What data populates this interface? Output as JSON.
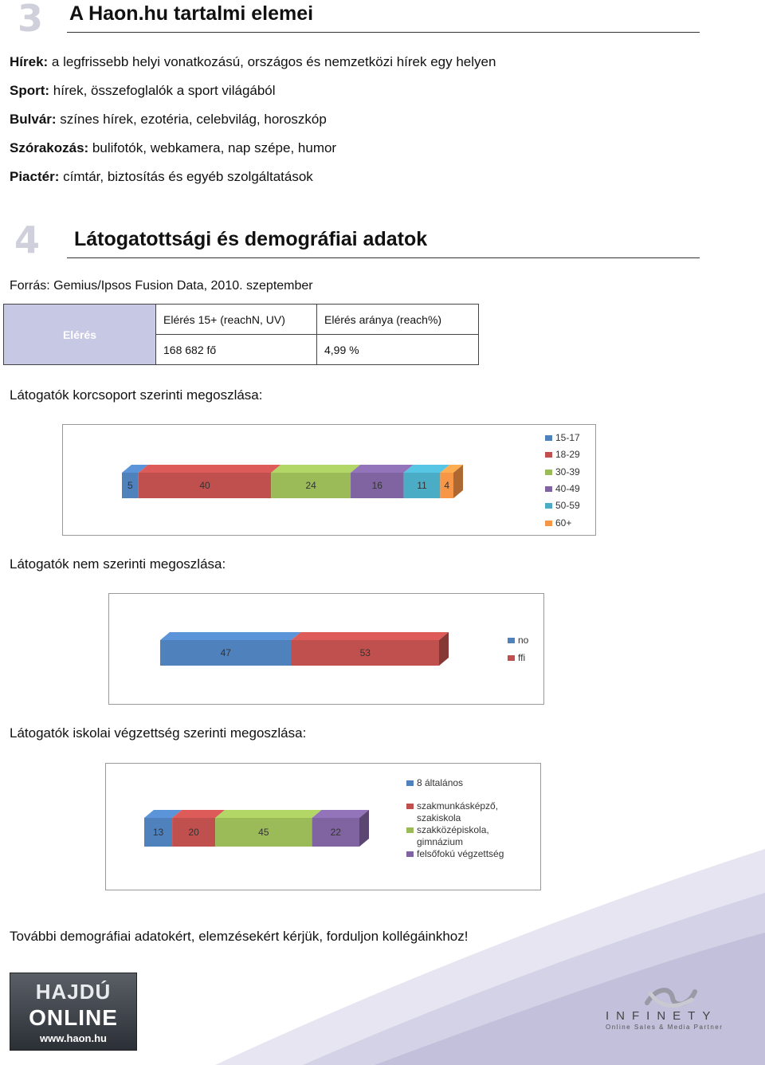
{
  "section3": {
    "number": "3",
    "title": "A Haon.hu tartalmi elemei"
  },
  "content_items": [
    {
      "label": "Hírek:",
      "text": " a legfrissebb helyi vonatkozású, országos és nemzetközi hírek egy helyen"
    },
    {
      "label": "Sport:",
      "text": " hírek, összefoglalók a sport világából"
    },
    {
      "label": "Bulvár:",
      "text": " színes hírek, ezotéria, celebvilág, horoszkóp"
    },
    {
      "label": "Szórakozás:",
      "text": " bulifotók, webkamera, nap szépe, humor"
    },
    {
      "label": "Piactér:",
      "text": " címtár, biztosítás és egyéb szolgáltatások"
    }
  ],
  "section4": {
    "number": "4",
    "title": "Látogatottsági és demográfiai adatok"
  },
  "source": "Forrás: Gemius/Ipsos Fusion Data, 2010. szeptember",
  "reach_table": {
    "row_header": "Elérés",
    "col1_header": "Elérés 15+ (reachN, UV)",
    "col2_header": "Elérés aránya (reach%)",
    "col1_value": "168 682 fő",
    "col2_value": "4,99 %"
  },
  "headings": {
    "age": "Látogatók korcsoport szerinti megoszlása:",
    "gender": "Látogatók nem szerinti megoszlása:",
    "education": "Látogatók iskolai végzettség szerinti megoszlása:"
  },
  "chart_data": [
    {
      "type": "bar",
      "stacked": true,
      "orientation": "horizontal",
      "series": [
        {
          "name": "15-17",
          "value": 5,
          "color": "#4f81bd"
        },
        {
          "name": "18-29",
          "value": 40,
          "color": "#c0504d"
        },
        {
          "name": "30-39",
          "value": 24,
          "color": "#9bbb59"
        },
        {
          "name": "40-49",
          "value": 16,
          "color": "#8064a2"
        },
        {
          "name": "50-59",
          "value": 11,
          "color": "#4bacc6"
        },
        {
          "name": "60+",
          "value": 4,
          "color": "#f79646"
        }
      ],
      "legend": "right"
    },
    {
      "type": "bar",
      "stacked": true,
      "orientation": "horizontal",
      "series": [
        {
          "name": "no",
          "value": 47,
          "color": "#4f81bd"
        },
        {
          "name": "ffi",
          "value": 53,
          "color": "#c0504d"
        }
      ],
      "legend": "right"
    },
    {
      "type": "bar",
      "stacked": true,
      "orientation": "horizontal",
      "series": [
        {
          "name": "8 általános",
          "value": 13,
          "color": "#4f81bd"
        },
        {
          "name": "szakmunkásképző, szakiskola",
          "value": 20,
          "color": "#c0504d"
        },
        {
          "name": "szakközépiskola, gimnázium",
          "value": 45,
          "color": "#9bbb59"
        },
        {
          "name": "felsőfokú végzettség",
          "value": 22,
          "color": "#8064a2"
        }
      ],
      "legend": "right"
    }
  ],
  "legend_text": {
    "age": [
      "15-17",
      "18-29",
      "30-39",
      "40-49",
      "50-59",
      "60+"
    ],
    "gender": [
      "no",
      "ffi"
    ],
    "education": [
      [
        "8 általános"
      ],
      [
        "szakmunkásképző,",
        "szakiskola"
      ],
      [
        "szakközépiskola,",
        "gimnázium"
      ],
      [
        "felsőfokú végzettség"
      ]
    ]
  },
  "closing": "További demográfiai adatokért, elemzésekért kérjük, forduljon kollégáinkhoz!",
  "logo_hajdu": {
    "line1": "HAJDÚ",
    "line2": "ONLINE",
    "line3": "www.haon.hu"
  },
  "logo_infinety": {
    "name": "INFINETY",
    "tagline": "Online Sales & Media Partner"
  },
  "colors": {
    "accent_lavender": "#c7c8e4",
    "deco_lavender": "#d3d2e6"
  }
}
